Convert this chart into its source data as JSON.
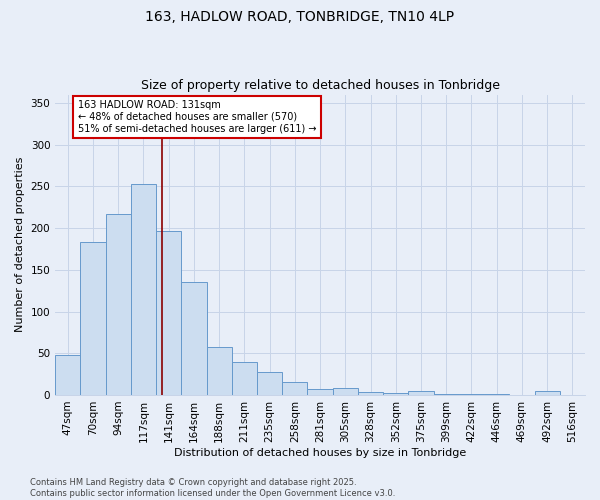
{
  "title_line1": "163, HADLOW ROAD, TONBRIDGE, TN10 4LP",
  "title_line2": "Size of property relative to detached houses in Tonbridge",
  "xlabel": "Distribution of detached houses by size in Tonbridge",
  "ylabel": "Number of detached properties",
  "categories": [
    "47sqm",
    "70sqm",
    "94sqm",
    "117sqm",
    "141sqm",
    "164sqm",
    "188sqm",
    "211sqm",
    "235sqm",
    "258sqm",
    "281sqm",
    "305sqm",
    "328sqm",
    "352sqm",
    "375sqm",
    "399sqm",
    "422sqm",
    "446sqm",
    "469sqm",
    "492sqm",
    "516sqm"
  ],
  "values": [
    48,
    183,
    217,
    253,
    197,
    135,
    57,
    39,
    28,
    15,
    7,
    8,
    3,
    2,
    5,
    1,
    1,
    1,
    0,
    5,
    0
  ],
  "bar_color": "#ccddf0",
  "bar_edge_color": "#6699cc",
  "grid_color": "#c8d4e8",
  "background_color": "#e8eef8",
  "vline_color": "#8b0000",
  "annotation_text": "163 HADLOW ROAD: 131sqm\n← 48% of detached houses are smaller (570)\n51% of semi-detached houses are larger (611) →",
  "annotation_box_color": "white",
  "annotation_box_edgecolor": "#cc0000",
  "ylim": [
    0,
    360
  ],
  "yticks": [
    0,
    50,
    100,
    150,
    200,
    250,
    300,
    350
  ],
  "footer": "Contains HM Land Registry data © Crown copyright and database right 2025.\nContains public sector information licensed under the Open Government Licence v3.0.",
  "title_fontsize": 10,
  "subtitle_fontsize": 9,
  "axis_label_fontsize": 8,
  "tick_fontsize": 7.5,
  "annotation_fontsize": 7,
  "footer_fontsize": 6
}
